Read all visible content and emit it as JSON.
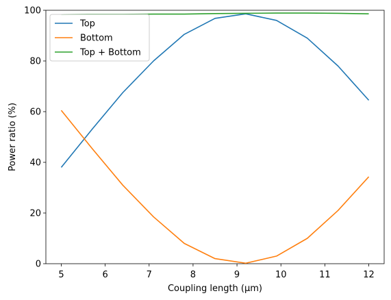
{
  "chart_data": {
    "type": "line",
    "xlabel": "Coupling length (µm)",
    "ylabel": "Power ratio (%)",
    "xlim": [
      4.65,
      12.35
    ],
    "ylim": [
      0,
      100
    ],
    "xticks": [
      5,
      6,
      7,
      8,
      9,
      10,
      11,
      12
    ],
    "yticks": [
      0,
      20,
      40,
      60,
      80,
      100
    ],
    "grid": false,
    "legend_position": "top-left",
    "x": [
      5,
      5.7,
      6.4,
      7.1,
      7.8,
      8.5,
      9.2,
      9.9,
      10.6,
      11.3,
      12
    ],
    "series": [
      {
        "name": "Top",
        "color": "#1f77b4",
        "values": [
          38.0,
          53.0,
          67.5,
          80.0,
          90.5,
          96.8,
          98.6,
          96.0,
          89.0,
          78.0,
          64.5
        ]
      },
      {
        "name": "Bottom",
        "color": "#ff7f0e",
        "values": [
          60.5,
          45.5,
          31.0,
          18.5,
          8.0,
          2.0,
          0.2,
          3.0,
          10.0,
          21.0,
          34.3
        ]
      },
      {
        "name": "Top + Bottom",
        "color": "#2ca02c",
        "values": [
          98.3,
          98.4,
          98.4,
          98.5,
          98.5,
          98.7,
          98.8,
          98.9,
          98.9,
          98.8,
          98.6
        ]
      }
    ]
  }
}
